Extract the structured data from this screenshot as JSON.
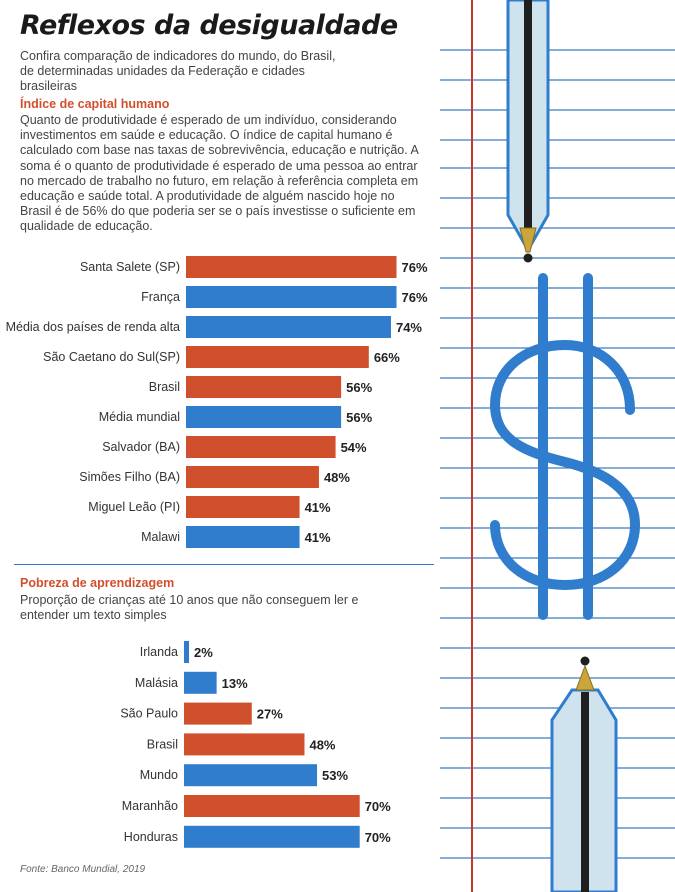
{
  "title": "Reflexos da desigualdade",
  "subtitle": "Confira comparação de indicadores do mundo, do Brasil, de determinadas unidades da Federação e cidades brasileiras",
  "sections": [
    {
      "title": "Índice de capital humano",
      "description": "Quanto de produtividade é esperado de um indivíduo, considerando investimentos em saúde e educação. O índice de capital humano é calculado com base nas taxas de sobrevivência, educação e nutrição. A soma é o quanto de produtividade é esperado de uma pessoa ao entrar no mercado de trabalho no futuro, em relação à referência completa em educação e saúde total. A produtividade de alguém nascido hoje no Brasil é de 56% do que poderia ser se o país investisse o suficiente em qualidade de educação."
    },
    {
      "title": "Pobreza de aprendizagem",
      "description": "Proporção de crianças até 10 anos que não conseguem ler e entender um texto simples"
    }
  ],
  "source": "Fonte: Banco Mundial, 2019",
  "colors": {
    "red": "#d0502d",
    "blue": "#2f7dcc",
    "title": "#1a1a1a"
  },
  "chart_data": [
    {
      "type": "bar",
      "orientation": "horizontal",
      "title": "Índice de capital humano",
      "unit": "%",
      "categories": [
        "Santa Salete (SP)",
        "França",
        "Média dos países de renda alta",
        "São Caetano do Sul(SP)",
        "Brasil",
        "Média mundial",
        "Salvador (BA)",
        "Simões Filho (BA)",
        "Miguel Leão (PI)",
        "Malawi"
      ],
      "values": [
        76,
        76,
        74,
        66,
        56,
        56,
        54,
        48,
        41,
        41
      ],
      "labels": [
        "76%",
        "76%",
        "74%",
        "66%",
        "56%",
        "56%",
        "54%",
        "48%",
        "41%",
        "41%"
      ],
      "bar_colors": [
        "red",
        "blue",
        "blue",
        "red",
        "red",
        "blue",
        "red",
        "red",
        "red",
        "blue"
      ],
      "xlim": [
        0,
        100
      ]
    },
    {
      "type": "bar",
      "orientation": "horizontal",
      "title": "Pobreza de aprendizagem",
      "unit": "%",
      "categories": [
        "Irlanda",
        "Malásia",
        "São Paulo",
        "Brasil",
        "Mundo",
        "Maranhão",
        "Honduras"
      ],
      "values": [
        2,
        13,
        27,
        48,
        53,
        70,
        70
      ],
      "labels": [
        "2%",
        "13%",
        "27%",
        "48%",
        "53%",
        "70%",
        "70%"
      ],
      "bar_colors": [
        "blue",
        "blue",
        "red",
        "red",
        "blue",
        "red",
        "blue"
      ],
      "xlim": [
        0,
        100
      ]
    }
  ]
}
